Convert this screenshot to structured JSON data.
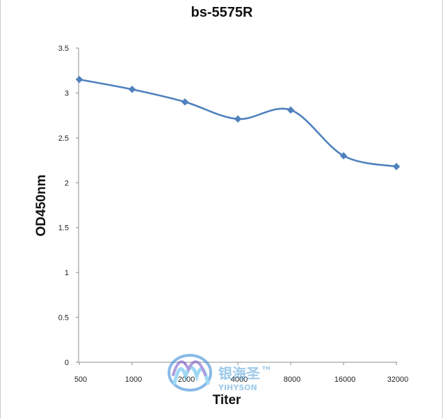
{
  "chart_data": {
    "type": "line",
    "title": "bs-5575R",
    "xlabel": "Titer",
    "ylabel": "OD450nm",
    "categories": [
      "500",
      "1000",
      "2000",
      "4000",
      "8000",
      "16000",
      "32000"
    ],
    "series": [
      {
        "values": [
          3.15,
          3.04,
          2.9,
          2.71,
          2.81,
          2.3,
          2.18
        ],
        "color": "#4f81bd",
        "marker": "diamond",
        "smooth": true
      }
    ],
    "ylim": [
      0,
      3.5
    ],
    "yticks": [
      "0",
      "0.5",
      "1",
      "1.5",
      "2",
      "2.5",
      "3",
      "3.5"
    ],
    "grid": false,
    "legend": "none"
  },
  "watermark": {
    "text_cn": "银海圣",
    "text_en": "YIHYSON",
    "tm": "TM",
    "colors": [
      "#3a8ad8",
      "#5fbff0",
      "#7a58c8"
    ]
  }
}
